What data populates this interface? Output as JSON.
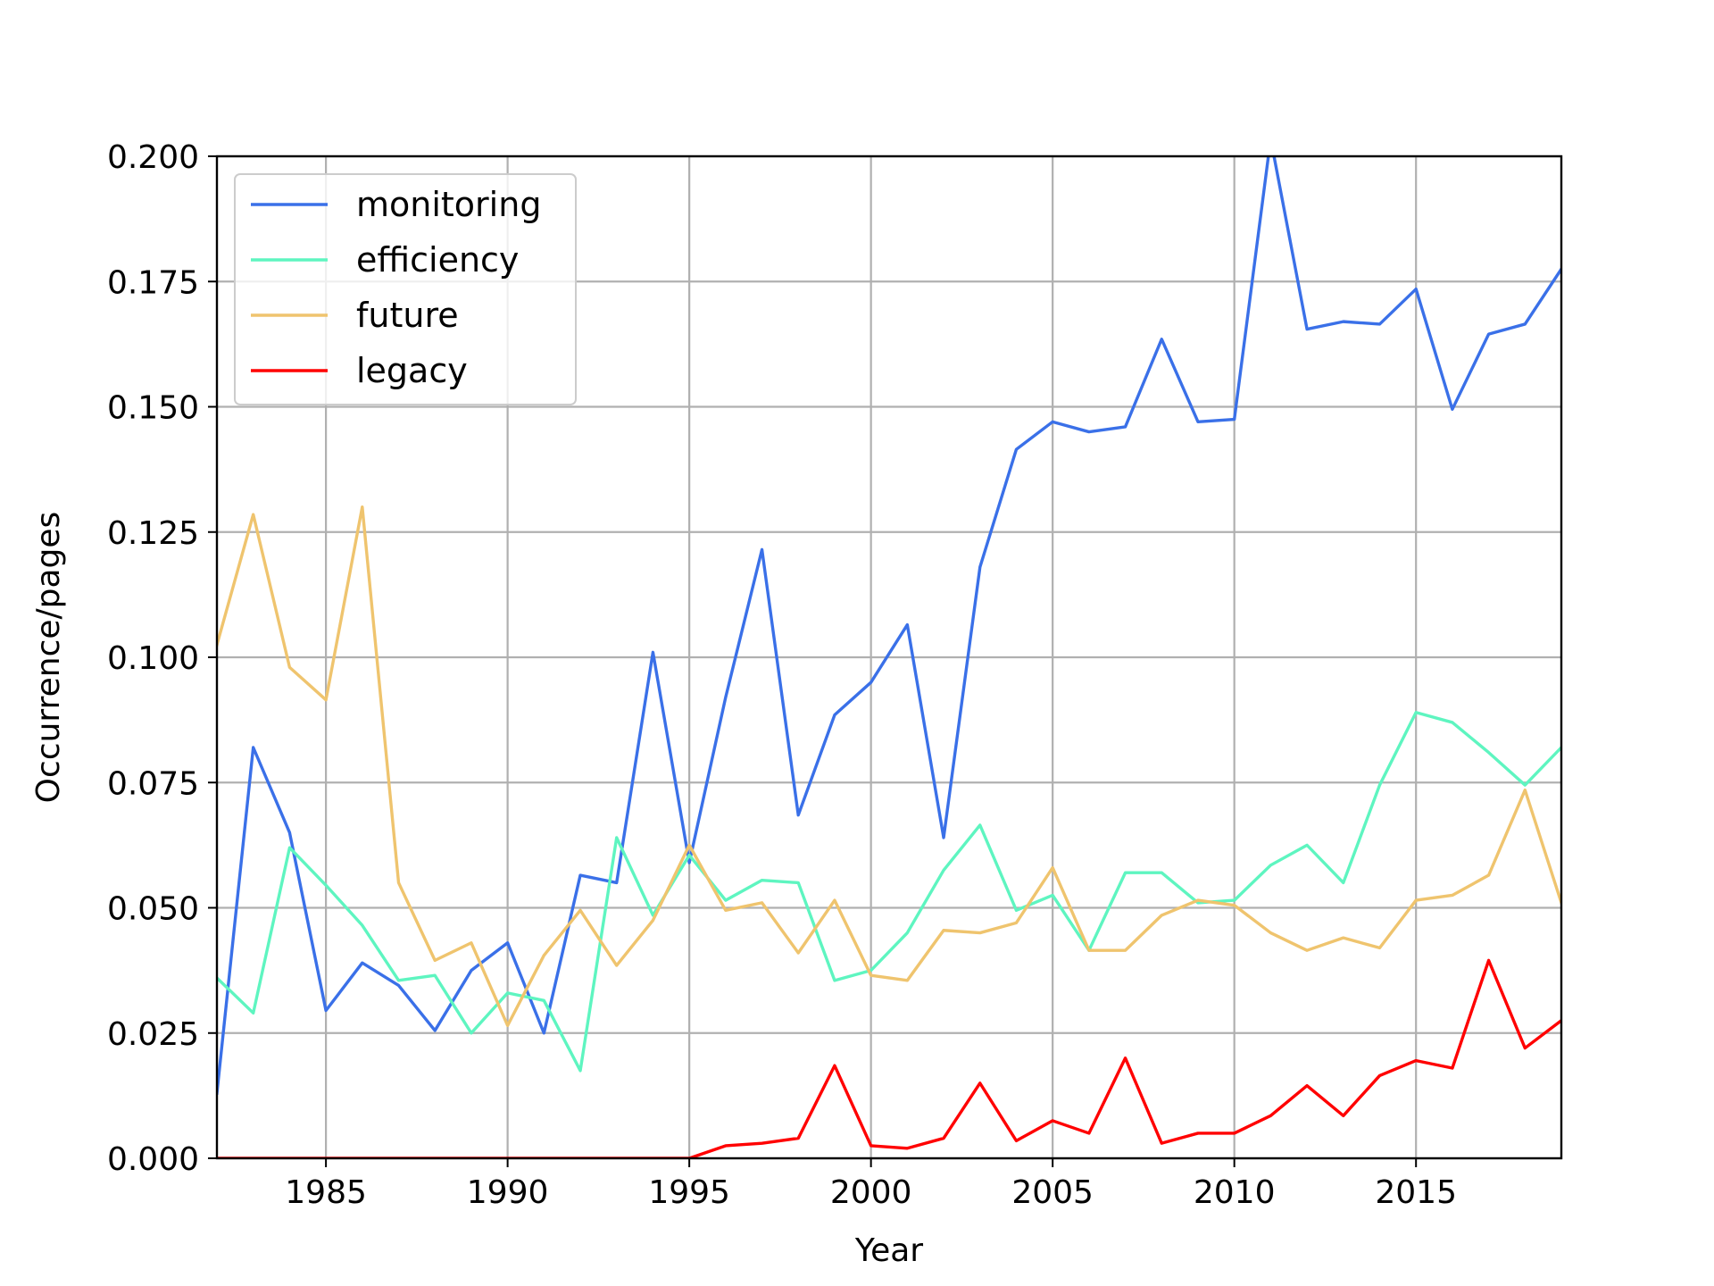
{
  "chart_data": {
    "type": "line",
    "xlabel": "Year",
    "ylabel": "Occurrence/pages",
    "xlim": [
      1982,
      2019
    ],
    "ylim": [
      0,
      0.2
    ],
    "xticks": [
      1985,
      1990,
      1995,
      2000,
      2005,
      2010,
      2015
    ],
    "yticks": [
      0.0,
      0.025,
      0.05,
      0.075,
      0.1,
      0.125,
      0.15,
      0.175,
      0.2
    ],
    "ytick_labels": [
      "0.000",
      "0.025",
      "0.050",
      "0.075",
      "0.100",
      "0.125",
      "0.150",
      "0.175",
      "0.200"
    ],
    "grid": true,
    "legend_position": "top-left",
    "x": [
      1982,
      1983,
      1984,
      1985,
      1986,
      1987,
      1988,
      1989,
      1990,
      1991,
      1992,
      1993,
      1994,
      1995,
      1996,
      1997,
      1998,
      1999,
      2000,
      2001,
      2002,
      2003,
      2004,
      2005,
      2006,
      2007,
      2008,
      2009,
      2010,
      2011,
      2012,
      2013,
      2014,
      2015,
      2016,
      2017,
      2018,
      2019
    ],
    "series": [
      {
        "name": "monitoring",
        "color": "#3a70e8",
        "values": [
          0.013,
          0.082,
          0.065,
          0.0295,
          0.039,
          0.0345,
          0.0255,
          0.0375,
          0.043,
          0.025,
          0.0565,
          0.055,
          0.101,
          0.059,
          0.092,
          0.1215,
          0.0685,
          0.0885,
          0.095,
          0.1065,
          0.064,
          0.118,
          0.1415,
          0.147,
          0.145,
          0.146,
          0.1635,
          0.147,
          0.1475,
          0.2035,
          0.1655,
          0.167,
          0.1665,
          0.1735,
          0.1495,
          0.1645,
          0.1665,
          0.1775
        ]
      },
      {
        "name": "efficiency",
        "color": "#5ef5c0",
        "values": [
          0.036,
          0.029,
          0.062,
          0.0545,
          0.0465,
          0.0355,
          0.0365,
          0.025,
          0.033,
          0.0315,
          0.0175,
          0.064,
          0.0485,
          0.0605,
          0.0515,
          0.0555,
          0.055,
          0.0355,
          0.0375,
          0.045,
          0.0575,
          0.0665,
          0.0495,
          0.0525,
          0.0415,
          0.057,
          0.057,
          0.051,
          0.0515,
          0.0585,
          0.0625,
          0.055,
          0.0745,
          0.089,
          0.087,
          0.081,
          0.0745,
          0.082
        ]
      },
      {
        "name": "future",
        "color": "#efc46e",
        "values": [
          0.1025,
          0.1285,
          0.098,
          0.0915,
          0.13,
          0.055,
          0.0395,
          0.043,
          0.0265,
          0.0405,
          0.0495,
          0.0385,
          0.0475,
          0.0625,
          0.0495,
          0.051,
          0.041,
          0.0515,
          0.0365,
          0.0355,
          0.0455,
          0.045,
          0.047,
          0.058,
          0.0415,
          0.0415,
          0.0485,
          0.0515,
          0.0505,
          0.045,
          0.0415,
          0.044,
          0.042,
          0.0515,
          0.0525,
          0.0565,
          0.0735,
          0.051
        ]
      },
      {
        "name": "legacy",
        "color": "#ff0000",
        "values": [
          0,
          0,
          0,
          0,
          0,
          0,
          0,
          0,
          0,
          0,
          0,
          0,
          0,
          0,
          0.0025,
          0.003,
          0.004,
          0.0185,
          0.0025,
          0.002,
          0.004,
          0.015,
          0.0035,
          0.0075,
          0.005,
          0.02,
          0.003,
          0.005,
          0.005,
          0.0085,
          0.0145,
          0.0085,
          0.0165,
          0.0195,
          0.018,
          0.0395,
          0.022,
          0.0275
        ]
      }
    ]
  }
}
